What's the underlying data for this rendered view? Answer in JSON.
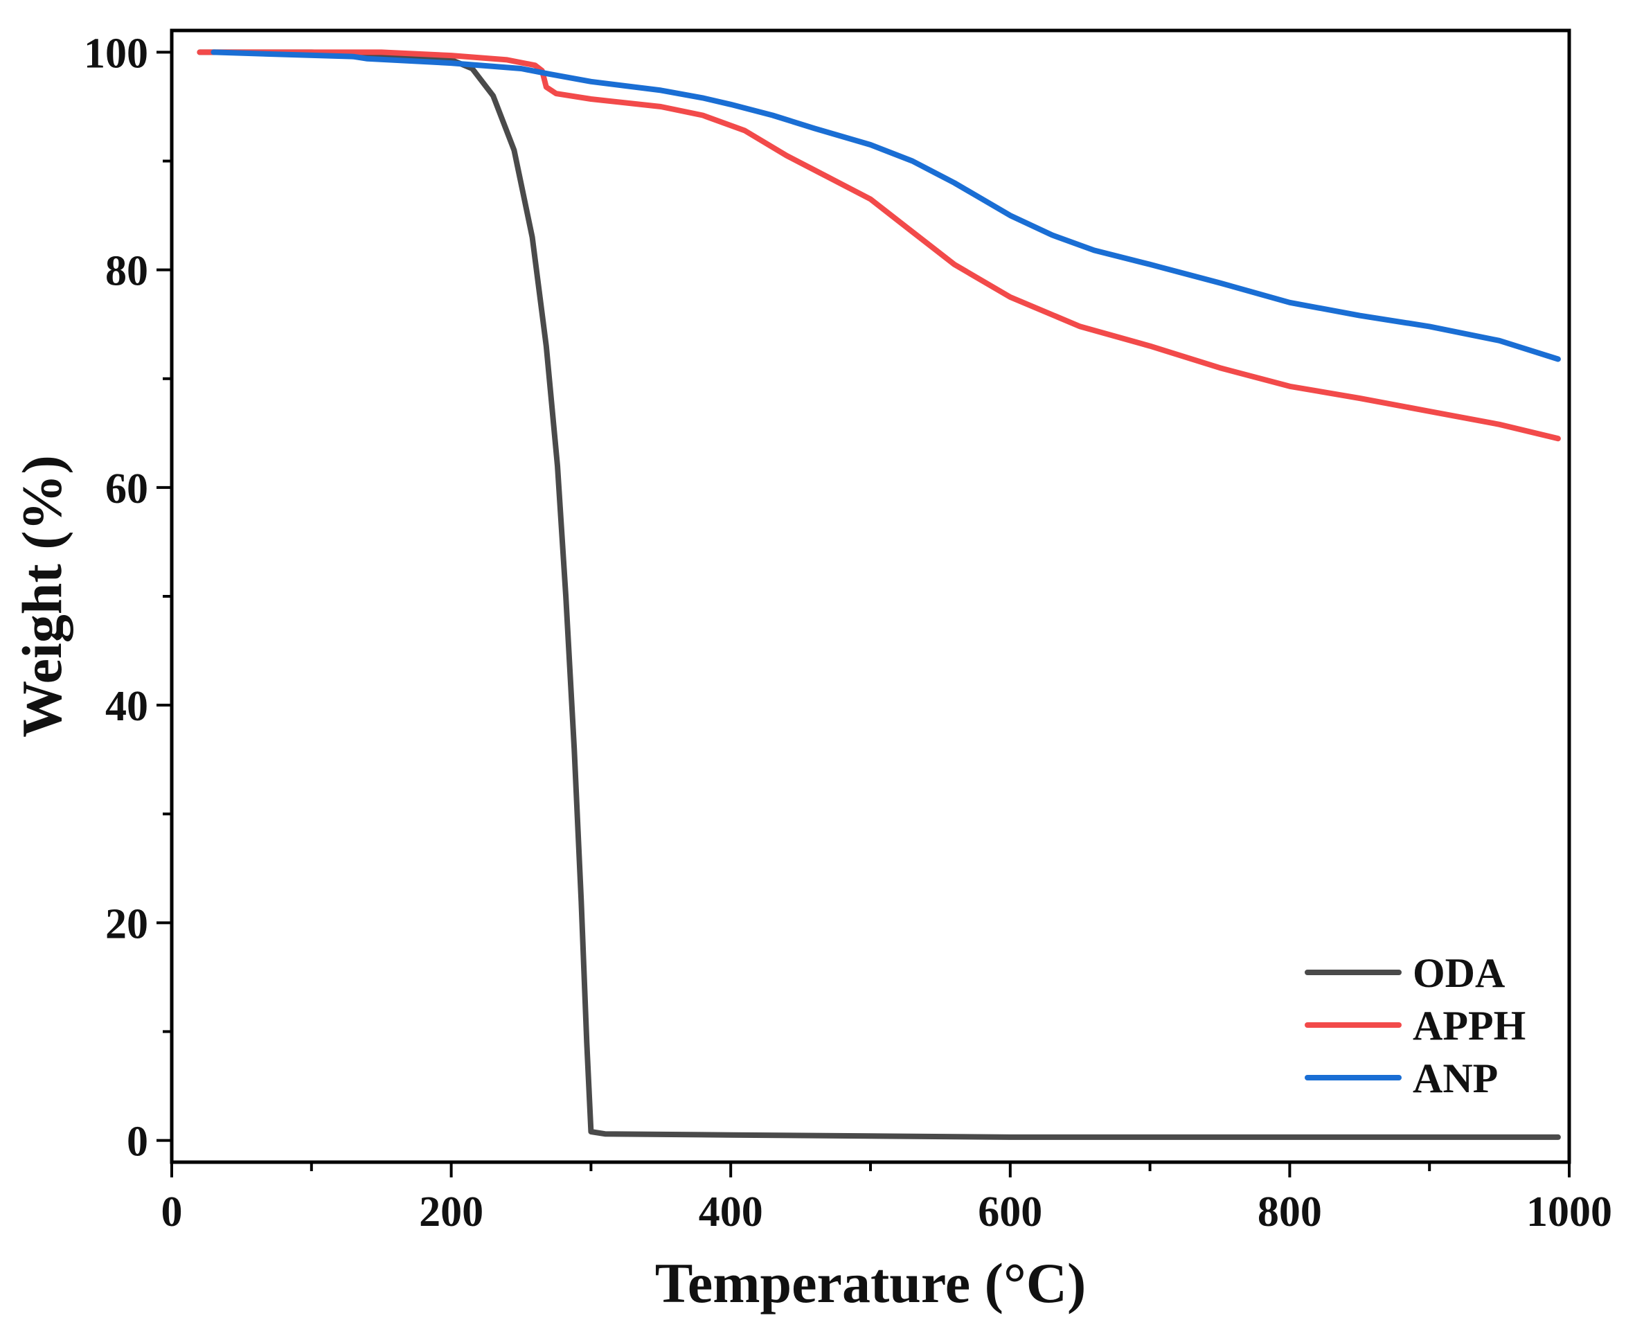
{
  "chart_data": {
    "type": "line",
    "title": "",
    "xlabel": "Temperature (°C)",
    "ylabel": "Weight (%)",
    "xlim": [
      0,
      1000
    ],
    "ylim": [
      -2,
      102
    ],
    "x_ticks": [
      0,
      200,
      400,
      600,
      800,
      1000
    ],
    "x_tick_labels": [
      "0",
      "200",
      "400",
      "600",
      "800",
      "1000"
    ],
    "y_ticks": [
      0,
      20,
      40,
      60,
      80,
      100
    ],
    "y_tick_labels": [
      "0",
      "20",
      "40",
      "60",
      "80",
      "100"
    ],
    "x_minor_ticks": [
      100,
      300,
      500,
      700,
      900
    ],
    "y_minor_ticks": [
      10,
      30,
      50,
      70,
      90
    ],
    "grid": false,
    "legend_position": "bottom-right",
    "series": [
      {
        "name": "ODA",
        "color": "#4a4a4a",
        "points": [
          [
            20,
            100
          ],
          [
            100,
            100
          ],
          [
            150,
            99.8
          ],
          [
            200,
            99.3
          ],
          [
            215,
            98.5
          ],
          [
            230,
            96
          ],
          [
            245,
            91
          ],
          [
            258,
            83
          ],
          [
            268,
            73
          ],
          [
            276,
            62
          ],
          [
            282,
            50
          ],
          [
            288,
            36
          ],
          [
            293,
            22
          ],
          [
            297,
            9
          ],
          [
            300,
            0.8
          ],
          [
            310,
            0.6
          ],
          [
            400,
            0.5
          ],
          [
            500,
            0.4
          ],
          [
            600,
            0.3
          ],
          [
            700,
            0.3
          ],
          [
            800,
            0.3
          ],
          [
            900,
            0.3
          ],
          [
            992,
            0.3
          ]
        ]
      },
      {
        "name": "APPH",
        "color": "#f24a4a",
        "points": [
          [
            20,
            100
          ],
          [
            100,
            100
          ],
          [
            150,
            100
          ],
          [
            200,
            99.7
          ],
          [
            240,
            99.3
          ],
          [
            260,
            98.8
          ],
          [
            265,
            98.3
          ],
          [
            268,
            96.8
          ],
          [
            275,
            96.2
          ],
          [
            300,
            95.7
          ],
          [
            350,
            95.0
          ],
          [
            380,
            94.2
          ],
          [
            410,
            92.8
          ],
          [
            440,
            90.5
          ],
          [
            470,
            88.5
          ],
          [
            500,
            86.5
          ],
          [
            530,
            83.5
          ],
          [
            560,
            80.5
          ],
          [
            600,
            77.5
          ],
          [
            650,
            74.8
          ],
          [
            700,
            73.0
          ],
          [
            750,
            71.0
          ],
          [
            800,
            69.3
          ],
          [
            850,
            68.2
          ],
          [
            900,
            67.0
          ],
          [
            950,
            65.8
          ],
          [
            992,
            64.5
          ]
        ]
      },
      {
        "name": "ANP",
        "color": "#1a6ed4",
        "points": [
          [
            30,
            100
          ],
          [
            80,
            99.8
          ],
          [
            130,
            99.6
          ],
          [
            140,
            99.4
          ],
          [
            200,
            99.0
          ],
          [
            250,
            98.5
          ],
          [
            270,
            98.0
          ],
          [
            300,
            97.3
          ],
          [
            350,
            96.5
          ],
          [
            380,
            95.8
          ],
          [
            400,
            95.2
          ],
          [
            430,
            94.2
          ],
          [
            460,
            93.0
          ],
          [
            500,
            91.5
          ],
          [
            530,
            90.0
          ],
          [
            560,
            88.0
          ],
          [
            600,
            85.0
          ],
          [
            630,
            83.2
          ],
          [
            660,
            81.8
          ],
          [
            700,
            80.5
          ],
          [
            750,
            78.8
          ],
          [
            800,
            77.0
          ],
          [
            850,
            75.8
          ],
          [
            900,
            74.8
          ],
          [
            950,
            73.5
          ],
          [
            992,
            71.8
          ]
        ]
      }
    ]
  }
}
